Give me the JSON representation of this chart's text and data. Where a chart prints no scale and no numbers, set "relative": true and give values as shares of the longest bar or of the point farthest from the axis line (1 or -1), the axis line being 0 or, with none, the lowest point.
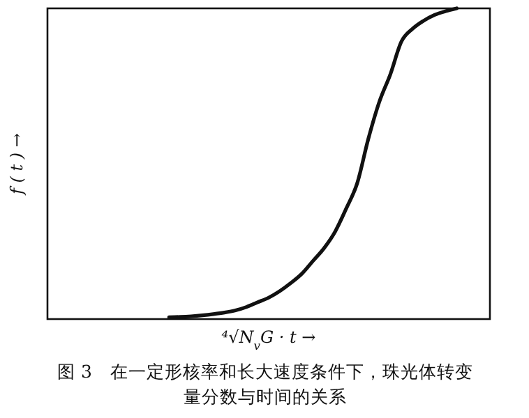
{
  "chart_data": {
    "type": "line",
    "relative": true,
    "title": "图 3　在一定形核率和长大速度条件下，珠光体转变量分数与时间的关系",
    "xlabel": "⁴√N$_{v}$G · t →",
    "ylabel": "f ( t ) →",
    "categories": [
      null,
      null,
      null,
      null,
      null,
      null,
      null,
      null,
      null,
      null,
      null,
      null,
      null,
      null,
      null,
      null,
      null,
      null,
      null,
      null,
      null,
      null,
      null,
      null,
      null,
      null,
      null,
      null,
      null,
      null,
      null,
      null,
      null,
      null,
      null,
      null,
      null,
      null,
      null,
      null,
      null
    ],
    "series": [
      {
        "color": "#111111",
        "values": [
          null,
          null,
          null,
          null,
          null,
          null,
          null,
          null,
          null,
          null,
          null,
          0.006,
          0.007,
          0.009,
          0.012,
          0.016,
          0.021,
          0.028,
          0.039,
          0.054,
          0.069,
          0.09,
          0.116,
          0.146,
          0.187,
          0.228,
          0.281,
          0.355,
          0.437,
          0.579,
          0.699,
          0.788,
          0.893,
          0.934,
          0.96,
          0.979,
          0.991,
          1,
          null,
          null,
          null
        ]
      }
    ]
  }
}
